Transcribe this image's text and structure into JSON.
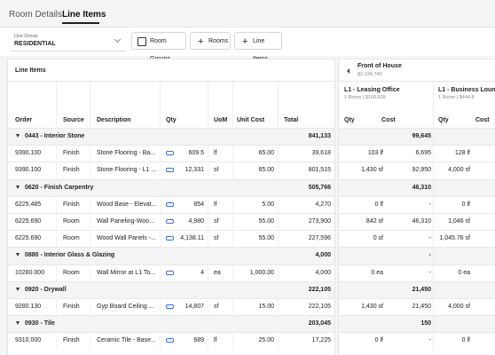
{
  "tabs": [
    "Room Details",
    "Line Items"
  ],
  "toolbar": {
    "use_group_label": "Use Group",
    "use_group_value": "RESIDENTIAL",
    "buttons": [
      "Room Groups",
      "Rooms",
      "Line Items"
    ]
  },
  "panel_title": "Line Items",
  "columns": [
    "Order",
    "Source",
    "Description",
    "Qty",
    "UoM",
    "Unit Cost",
    "Total"
  ],
  "room_group": {
    "name": "Front of House",
    "total": "$2,134,740"
  },
  "rooms": [
    {
      "name": "L1 - Leasing Office",
      "summary": "1 Room | $169,639"
    },
    {
      "name": "L1 - Business Lounge",
      "summary": "1 Room | $444,8"
    }
  ],
  "room_columns": [
    "Qty",
    "Cost"
  ],
  "rows": [
    {
      "group": "0443 - Interior Stone",
      "total": "841,133",
      "room_totals": [
        "99,645"
      ]
    },
    {
      "order": "9390.100",
      "source": "Finish",
      "description": "Stone Flooring - Ba...",
      "qty": "609.5",
      "uom": "lf",
      "unit_cost": "65.00",
      "total": "39,618",
      "rooms": [
        [
          "103 lf",
          "6,695"
        ],
        [
          "128 lf"
        ]
      ]
    },
    {
      "order": "9390.100",
      "source": "Finish",
      "description": "Stone Flooring - L1 ...",
      "qty": "12,331",
      "uom": "sf",
      "unit_cost": "65.00",
      "total": "801,515",
      "rooms": [
        [
          "1,430 sf",
          "92,950"
        ],
        [
          "4,000 sf"
        ]
      ]
    },
    {
      "group": "0620 - Finish Carpentry",
      "total": "505,766",
      "room_totals": [
        "46,310"
      ]
    },
    {
      "order": "6225.485",
      "source": "Finish",
      "description": "Wood Base - Elevat...",
      "qty": "854",
      "uom": "lf",
      "unit_cost": "5.00",
      "total": "4,270",
      "rooms": [
        [
          "0 lf",
          "-"
        ],
        [
          "0 lf"
        ]
      ]
    },
    {
      "order": "6225.690",
      "source": "Room",
      "description": "Wall Paneling-Woo...",
      "qty": "4,980",
      "uom": "sf",
      "unit_cost": "55.00",
      "total": "273,900",
      "rooms": [
        [
          "842 sf",
          "46,310"
        ],
        [
          "1,046 sf"
        ]
      ]
    },
    {
      "order": "6225.690",
      "source": "Room",
      "description": "Wood Wall Panels -...",
      "qty": "4,138.11",
      "uom": "sf",
      "unit_cost": "55.00",
      "total": "227,596",
      "rooms": [
        [
          "0 sf",
          "-"
        ],
        [
          "1,045.76 sf"
        ]
      ]
    },
    {
      "group": "0880 - Interior Glass & Glazing",
      "total": "4,000",
      "room_totals": [
        "-"
      ]
    },
    {
      "order": "10280.000",
      "source": "Room",
      "description": "Wall Mirror at L1 To...",
      "qty": "4",
      "uom": "ea",
      "unit_cost": "1,000.00",
      "total": "4,000",
      "rooms": [
        [
          "0 ea",
          "-"
        ],
        [
          "0 ea"
        ]
      ]
    },
    {
      "group": "0920 - Drywall",
      "total": "222,105",
      "room_totals": [
        "21,450"
      ]
    },
    {
      "order": "9280.130",
      "source": "Finish",
      "description": "Gyp Board Ceiling ...",
      "qty": "14,807",
      "uom": "sf",
      "unit_cost": "15.00",
      "total": "222,105",
      "rooms": [
        [
          "1,430 sf",
          "21,450"
        ],
        [
          "4,000 sf"
        ]
      ]
    },
    {
      "group": "0930 - Tile",
      "total": "203,045",
      "room_totals": [
        "150"
      ]
    },
    {
      "order": "9310.000",
      "source": "Finish",
      "description": "Ceramic Tile - Base...",
      "qty": "689",
      "uom": "lf",
      "unit_cost": "25.00",
      "total": "17,225",
      "rooms": [
        [
          "0 lf",
          "-"
        ],
        [
          "0 lf"
        ]
      ]
    }
  ]
}
